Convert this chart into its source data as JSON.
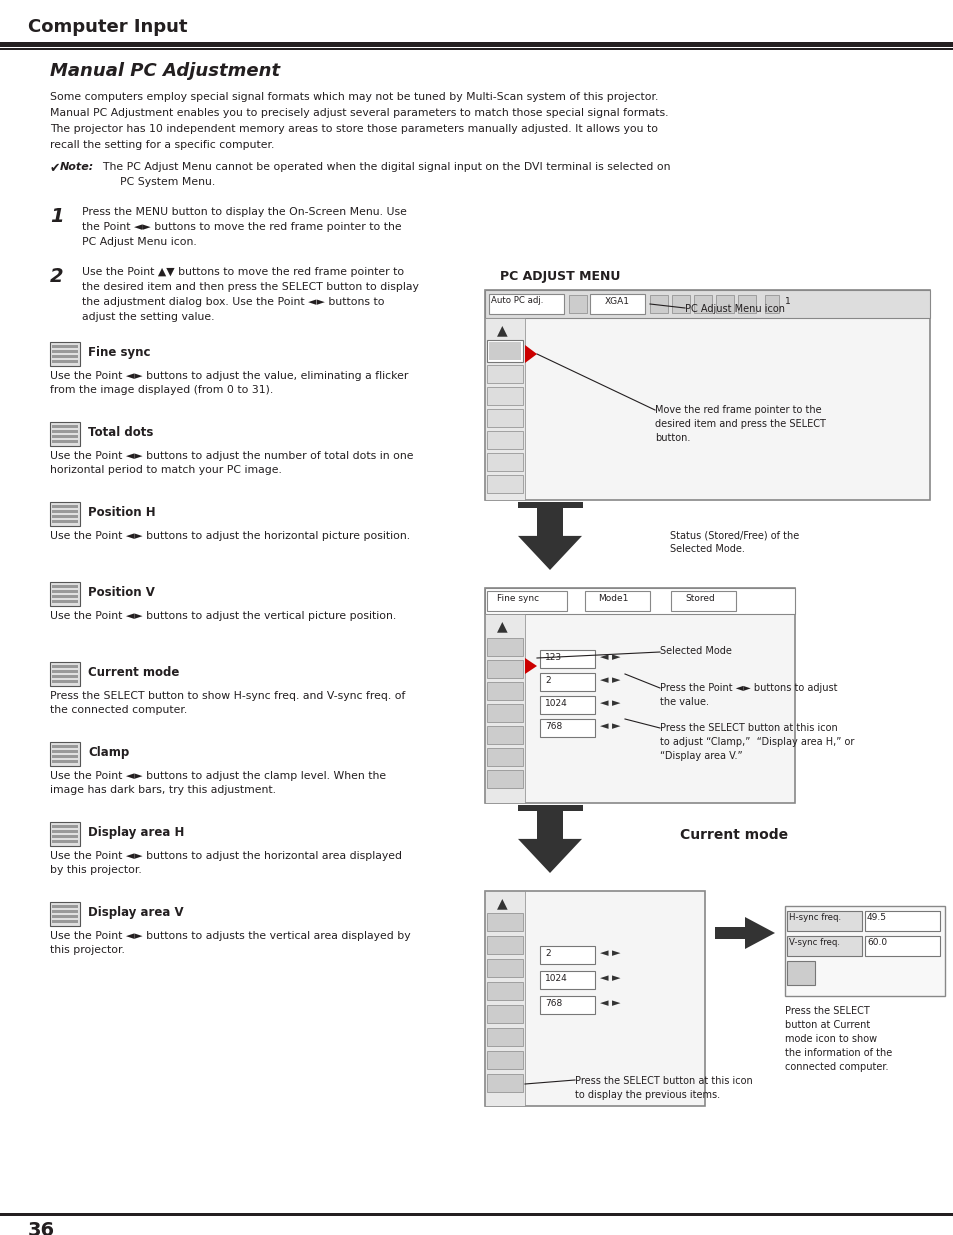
{
  "bg_color": "#ffffff",
  "text_color": "#231f20",
  "header_title": "Computer Input",
  "section_title": "Manual PC Adjustment",
  "page_number": "36",
  "fig_width": 9.54,
  "fig_height": 12.35,
  "dpi": 100
}
